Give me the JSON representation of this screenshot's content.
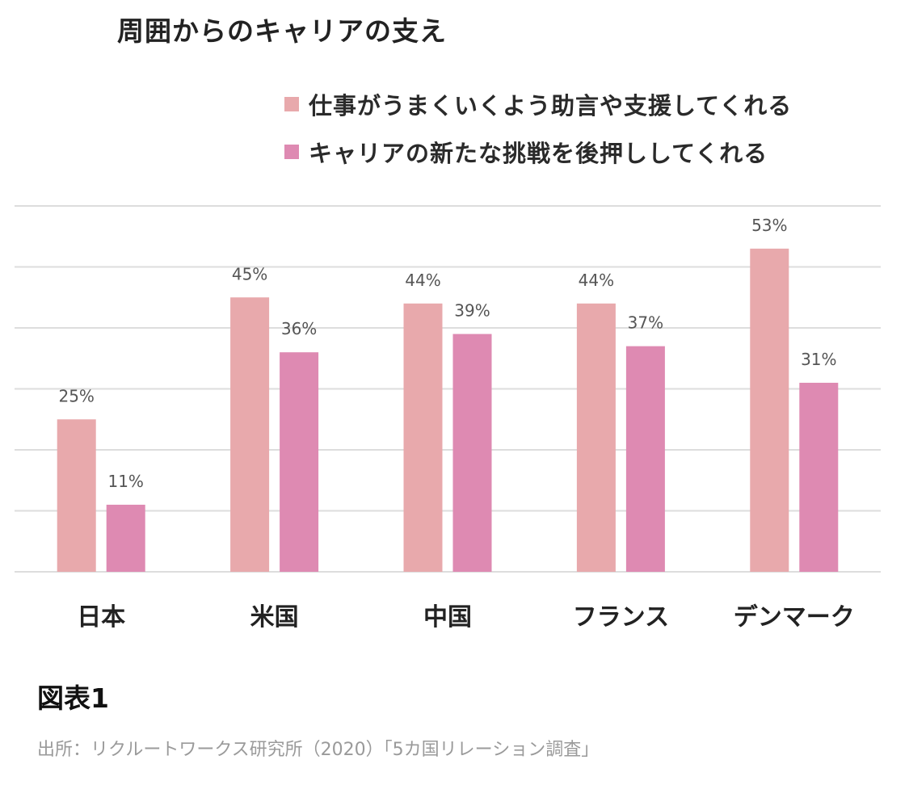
{
  "title": "周囲からのキャリアの支え",
  "figure_label": "図表1",
  "source": "出所：リクルートワークス研究所（2020）「5カ国リレーション調査」",
  "colors": {
    "series1": "#e8a9ac",
    "series2": "#de8ab2",
    "grid": "#dddddd",
    "value_label": "#555555"
  },
  "chart_data": {
    "type": "bar",
    "categories": [
      "日本",
      "米国",
      "中国",
      "フランス",
      "デンマーク"
    ],
    "series": [
      {
        "name": "仕事がうまくいくよう助言や支援してくれる",
        "values": [
          25,
          45,
          44,
          44,
          53
        ],
        "labels": [
          "25%",
          "45%",
          "44%",
          "44%",
          "53%"
        ]
      },
      {
        "name": "キャリアの新たな挑戦を後押ししてくれる",
        "values": [
          11,
          36,
          39,
          37,
          31
        ],
        "labels": [
          "11%",
          "36%",
          "39%",
          "37%",
          "31%"
        ]
      }
    ],
    "ylim": [
      0,
      60
    ],
    "grid": true,
    "legend_position": "top-right"
  }
}
